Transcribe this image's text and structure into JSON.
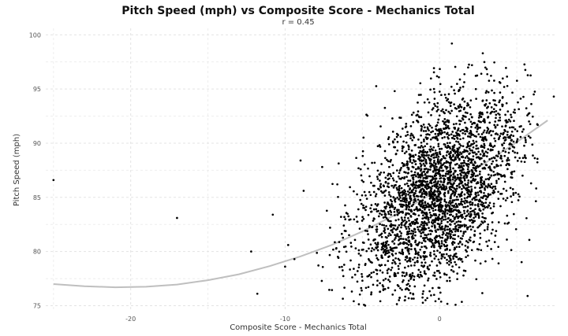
{
  "chart_data": {
    "type": "scatter",
    "title": "Pitch Speed (mph) vs Composite Score - Mechanics Total",
    "subtitle": "r =  0.45",
    "xlabel": "Composite Score - Mechanics Total",
    "ylabel": "Pitch Speed (mph)",
    "xlim": [
      -25.5,
      7.5
    ],
    "ylim": [
      74.6,
      100.6
    ],
    "x_ticks": [
      -20,
      -10,
      0
    ],
    "y_ticks": [
      75,
      80,
      85,
      90,
      95,
      100
    ],
    "grid": true,
    "colors": {
      "points": "#000000",
      "trend": "#bfbfbf",
      "grid": "#e3e3e3"
    },
    "trend": {
      "x": [
        -25,
        -23,
        -21,
        -19,
        -17,
        -15,
        -13,
        -11,
        -9,
        -7,
        -5,
        -3,
        -1,
        1,
        3,
        5,
        7
      ],
      "y": [
        77.0,
        76.8,
        76.7,
        76.75,
        76.95,
        77.35,
        77.9,
        78.65,
        79.55,
        80.6,
        81.85,
        83.3,
        84.9,
        86.6,
        88.2,
        90.1,
        92.1
      ]
    },
    "points_outliers": [
      {
        "x": -25.0,
        "y": 86.6
      },
      {
        "x": -17.0,
        "y": 83.1
      },
      {
        "x": -12.2,
        "y": 80.0
      },
      {
        "x": -11.8,
        "y": 76.1
      },
      {
        "x": -10.8,
        "y": 83.4
      },
      {
        "x": -10.0,
        "y": 78.6
      },
      {
        "x": -9.8,
        "y": 80.6
      },
      {
        "x": -9.4,
        "y": 79.3
      },
      {
        "x": -9.0,
        "y": 88.4
      },
      {
        "x": -8.8,
        "y": 85.6
      },
      {
        "x": -7.6,
        "y": 87.8
      },
      {
        "x": 0.8,
        "y": 99.2
      },
      {
        "x": 2.1,
        "y": 97.2
      },
      {
        "x": 2.8,
        "y": 98.3
      },
      {
        "x": 6.1,
        "y": 94.5
      },
      {
        "x": 7.4,
        "y": 94.3
      },
      {
        "x": 5.7,
        "y": 75.9
      }
    ],
    "cloud": {
      "n": 3000,
      "x_mean": 0.0,
      "x_sd": 2.7,
      "x_range": [
        -9.5,
        6.5
      ],
      "y_range": [
        75.0,
        97.5
      ],
      "slope": 0.85,
      "intercept": 85.5,
      "y_sd": 4.2
    }
  }
}
